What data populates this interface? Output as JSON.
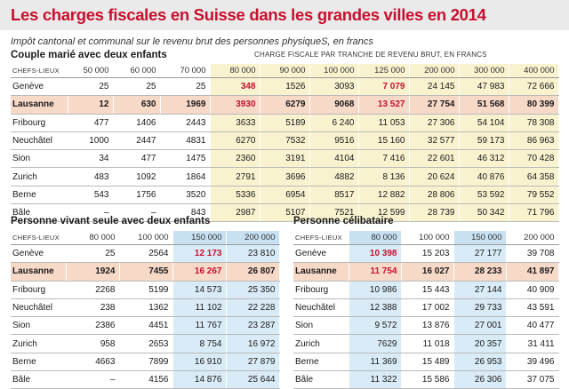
{
  "title": "Les charges fiscales en Suisse dans les grandes villes en 2014",
  "subtitle": "Impôt cantonal et communal sur le revenu brut des personnes physiqueS, en francs",
  "section1": {
    "title": "Couple marié avec deux enfants",
    "caption": "CHARGE FISCALE PAR TRANCHE DE REVENU BRUT, EN FRANCS",
    "header_label": "CHEFS-LIEUX",
    "columns": [
      "50 000",
      "60 000",
      "70 000",
      "80 000",
      "90 000",
      "100 000",
      "125 000",
      "200 000",
      "300 000",
      "400 000"
    ],
    "rows": [
      {
        "city": "Genève",
        "values": [
          "25",
          "25",
          "25",
          "348",
          "1526",
          "3093",
          "7 079",
          "24 145",
          "47 983",
          "72 666"
        ]
      },
      {
        "city": "Lausanne",
        "values": [
          "12",
          "630",
          "1969",
          "3930",
          "6279",
          "9068",
          "13 527",
          "27 754",
          "51 568",
          "80 399"
        ]
      },
      {
        "city": "Fribourg",
        "values": [
          "477",
          "1406",
          "2443",
          "3633",
          "5189",
          "6 240",
          "11 053",
          "27 306",
          "54 104",
          "78 308"
        ]
      },
      {
        "city": "Neuchâtel",
        "values": [
          "1000",
          "2447",
          "4831",
          "6270",
          "7532",
          "9516",
          "15 160",
          "32 577",
          "59 173",
          "86 963"
        ]
      },
      {
        "city": "Sion",
        "values": [
          "34",
          "477",
          "1475",
          "2360",
          "3191",
          "4104",
          "7 416",
          "22 601",
          "46 312",
          "70 428"
        ]
      },
      {
        "city": "Zurich",
        "values": [
          "483",
          "1092",
          "1864",
          "2791",
          "3696",
          "4882",
          "8 136",
          "20 624",
          "40 876",
          "64 358"
        ]
      },
      {
        "city": "Berne",
        "values": [
          "543",
          "1756",
          "3520",
          "5336",
          "6954",
          "8517",
          "12 882",
          "28 806",
          "53 592",
          "79 552"
        ]
      },
      {
        "city": "Bâle",
        "values": [
          "–",
          "–",
          "843",
          "2987",
          "5107",
          "7521",
          "12 599",
          "28 739",
          "50 342",
          "71 796"
        ]
      }
    ]
  },
  "section2": {
    "title": "Personne vivant seule avec deux enfants",
    "header_label": "CHEFS-LIEUX",
    "columns": [
      "80 000",
      "100 000",
      "150 000",
      "200 000"
    ],
    "rows": [
      {
        "city": "Genève",
        "values": [
          "25",
          "2564",
          "12 173",
          "23 810"
        ]
      },
      {
        "city": "Lausanne",
        "values": [
          "1924",
          "7455",
          "16 267",
          "26 807"
        ]
      },
      {
        "city": "Fribourg",
        "values": [
          "2268",
          "5199",
          "14 573",
          "25 350"
        ]
      },
      {
        "city": "Neuchâtel",
        "values": [
          "238",
          "1362",
          "11 102",
          "22 228"
        ]
      },
      {
        "city": "Sion",
        "values": [
          "2386",
          "4451",
          "11 767",
          "23 287"
        ]
      },
      {
        "city": "Zurich",
        "values": [
          "958",
          "2653",
          "8 754",
          "16 972"
        ]
      },
      {
        "city": "Berne",
        "values": [
          "4663",
          "7899",
          "16 910",
          "27 879"
        ]
      },
      {
        "city": "Bâle",
        "values": [
          "–",
          "4156",
          "14 876",
          "25 644"
        ]
      }
    ]
  },
  "section3": {
    "title": "Personne célibataire",
    "header_label": "CHEFS-LIEUX",
    "columns": [
      "80 000",
      "100 000",
      "150 000",
      "200 000"
    ],
    "rows": [
      {
        "city": "Genève",
        "values": [
          "10 398",
          "15 203",
          "27 177",
          "39 708"
        ]
      },
      {
        "city": "Lausanne",
        "values": [
          "11 754",
          "16 027",
          "28 233",
          "41 897"
        ]
      },
      {
        "city": "Fribourg",
        "values": [
          "10 986",
          "15 443",
          "27 144",
          "40 909"
        ]
      },
      {
        "city": "Neuchâtel",
        "values": [
          "12 388",
          "17 002",
          "29 733",
          "43 591"
        ]
      },
      {
        "city": "Sion",
        "values": [
          "9 572",
          "13 876",
          "27 001",
          "40 477"
        ]
      },
      {
        "city": "Zurich",
        "values": [
          "7629",
          "11 018",
          "20 357",
          "31 411"
        ]
      },
      {
        "city": "Berne",
        "values": [
          "11 369",
          "15 489",
          "26 953",
          "39 496"
        ]
      },
      {
        "city": "Bâle",
        "values": [
          "11 322",
          "15 586",
          "26 306",
          "37 075"
        ]
      }
    ]
  },
  "colors": {
    "title_red": "#c8102e",
    "highlight_row": "#f7d9c8",
    "column_blue": "#d8ebf7",
    "column_yellow": "#f8f2cf"
  }
}
